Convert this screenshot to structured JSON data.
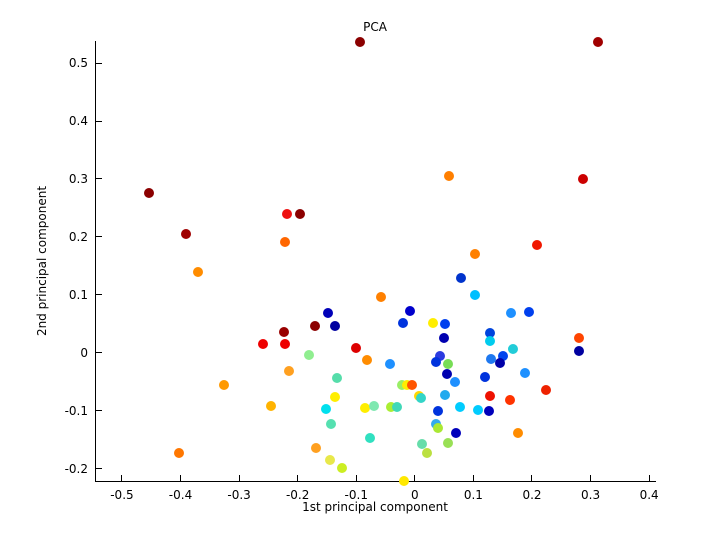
{
  "figure": {
    "title": "PCA",
    "xlabel": "1st principal component",
    "ylabel": "2nd principal component"
  },
  "chart_data": {
    "type": "scatter",
    "title": "PCA",
    "xlabel": "1st principal component",
    "ylabel": "2nd principal component",
    "grid": false,
    "legend": null,
    "marker": "filled-circle",
    "colormap": "jet",
    "xlim": [
      -0.546,
      0.41
    ],
    "ylim": [
      -0.221,
      0.538
    ],
    "xticks": [
      -0.5,
      -0.4,
      -0.3,
      -0.2,
      -0.1,
      0,
      0.1,
      0.2,
      0.3,
      0.4
    ],
    "yticks": [
      -0.2,
      -0.1,
      0,
      0.1,
      0.2,
      0.3,
      0.4,
      0.5
    ],
    "points": [
      [
        -0.093,
        0.537,
        "#8B0000"
      ],
      [
        0.313,
        0.537,
        "#A00000"
      ],
      [
        -0.453,
        0.275,
        "#8B0000"
      ],
      [
        0.287,
        0.3,
        "#CC0000"
      ],
      [
        -0.391,
        0.205,
        "#A00000"
      ],
      [
        0.059,
        0.305,
        "#FF7F00"
      ],
      [
        -0.218,
        0.24,
        "#EE1111"
      ],
      [
        -0.196,
        0.239,
        "#8B0000"
      ],
      [
        -0.221,
        0.191,
        "#FF6600"
      ],
      [
        -0.371,
        0.139,
        "#FF8C00"
      ],
      [
        0.208,
        0.186,
        "#F01800"
      ],
      [
        0.103,
        0.171,
        "#FF8000"
      ],
      [
        0.078,
        0.129,
        "#0033CC"
      ],
      [
        0.103,
        0.099,
        "#00BFFF"
      ],
      [
        -0.057,
        0.097,
        "#FF8000"
      ],
      [
        0.165,
        0.069,
        "#1E90FF"
      ],
      [
        0.195,
        0.07,
        "#0040EE"
      ],
      [
        -0.148,
        0.068,
        "#0000B8"
      ],
      [
        -0.171,
        0.047,
        "#8B0000"
      ],
      [
        -0.136,
        0.047,
        "#0000A0"
      ],
      [
        -0.008,
        0.072,
        "#0000CC"
      ],
      [
        -0.021,
        0.051,
        "#0033DD"
      ],
      [
        0.031,
        0.051,
        "#FFEE00"
      ],
      [
        0.052,
        0.05,
        "#0040EE"
      ],
      [
        0.05,
        0.026,
        "#0000B0"
      ],
      [
        0.129,
        0.034,
        "#0044DD"
      ],
      [
        0.128,
        0.021,
        "#00CCEE"
      ],
      [
        0.167,
        0.007,
        "#22CCD8"
      ],
      [
        0.281,
        0.026,
        "#FF4500"
      ],
      [
        0.281,
        0.004,
        "#0000A0"
      ],
      [
        -0.223,
        0.036,
        "#990000"
      ],
      [
        -0.221,
        0.015,
        "#EE0000"
      ],
      [
        -0.26,
        0.016,
        "#EE0000"
      ],
      [
        -0.101,
        0.008,
        "#DD0000"
      ],
      [
        -0.18,
        -0.003,
        "#90EE90"
      ],
      [
        -0.081,
        -0.012,
        "#FF8C00"
      ],
      [
        0.151,
        -0.005,
        "#0044EE"
      ],
      [
        0.13,
        -0.011,
        "#1E78F0"
      ],
      [
        0.145,
        -0.018,
        "#0000A8"
      ],
      [
        -0.043,
        -0.019,
        "#1E90FF"
      ],
      [
        0.043,
        -0.005,
        "#2B3BE0"
      ],
      [
        0.036,
        -0.015,
        "#0033DD"
      ],
      [
        0.056,
        -0.02,
        "#77DD55"
      ],
      [
        0.055,
        -0.036,
        "#0000B0"
      ],
      [
        0.188,
        -0.034,
        "#1E90FF"
      ],
      [
        0.12,
        -0.042,
        "#0033DD"
      ],
      [
        -0.214,
        -0.031,
        "#FFA020"
      ],
      [
        -0.133,
        -0.043,
        "#55DDAA"
      ],
      [
        -0.022,
        -0.056,
        "#99EE66"
      ],
      [
        -0.013,
        -0.055,
        "#FFEE00"
      ],
      [
        -0.005,
        -0.055,
        "#FF5500"
      ],
      [
        0.007,
        -0.074,
        "#FFD700"
      ],
      [
        0.011,
        -0.077,
        "#33D5C8"
      ],
      [
        0.068,
        -0.05,
        "#1E90FF"
      ],
      [
        0.052,
        -0.072,
        "#22AAEE"
      ],
      [
        0.077,
        -0.093,
        "#00CCFF"
      ],
      [
        0.108,
        -0.098,
        "#00CCFF"
      ],
      [
        0.127,
        -0.101,
        "#0000BB"
      ],
      [
        0.128,
        -0.074,
        "#EE1100"
      ],
      [
        0.163,
        -0.082,
        "#FF3300"
      ],
      [
        0.224,
        -0.064,
        "#EE2200"
      ],
      [
        -0.325,
        -0.055,
        "#FF9900"
      ],
      [
        -0.245,
        -0.091,
        "#FFB300"
      ],
      [
        -0.136,
        -0.076,
        "#FFEE00"
      ],
      [
        -0.151,
        -0.097,
        "#00E0EE"
      ],
      [
        -0.085,
        -0.095,
        "#FFEE00"
      ],
      [
        -0.069,
        -0.092,
        "#7FE8B0"
      ],
      [
        -0.04,
        -0.094,
        "#AAEE33"
      ],
      [
        -0.03,
        -0.094,
        "#40D8B8"
      ],
      [
        0.039,
        -0.1,
        "#0033DD"
      ],
      [
        -0.143,
        -0.123,
        "#55E0B0"
      ],
      [
        0.036,
        -0.122,
        "#33AAEE"
      ],
      [
        0.039,
        -0.13,
        "#AAE833"
      ],
      [
        0.071,
        -0.139,
        "#0000BB"
      ],
      [
        0.176,
        -0.139,
        "#FF8C00"
      ],
      [
        -0.076,
        -0.147,
        "#30E0C0"
      ],
      [
        0.012,
        -0.158,
        "#66DDAA"
      ],
      [
        0.057,
        -0.156,
        "#99E055"
      ],
      [
        0.02,
        -0.173,
        "#BBE040"
      ],
      [
        -0.168,
        -0.164,
        "#FFA020"
      ],
      [
        -0.145,
        -0.185,
        "#E8E84A"
      ],
      [
        -0.125,
        -0.199,
        "#CCEE22"
      ],
      [
        -0.018,
        -0.221,
        "#FFE800"
      ],
      [
        -0.402,
        -0.173,
        "#FF7700"
      ]
    ]
  }
}
